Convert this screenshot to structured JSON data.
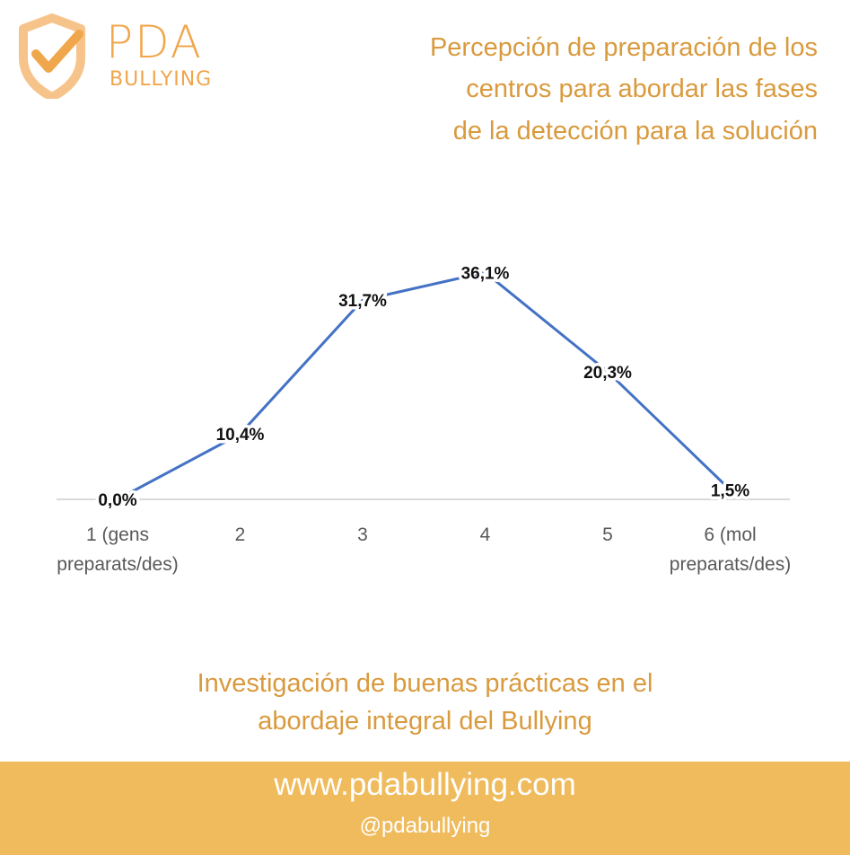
{
  "logo": {
    "line1": "PDA",
    "line2": "BULLYING",
    "icon": "shield-check-icon",
    "color": "#f0a64a"
  },
  "header": {
    "title_lines": [
      "Percepción de preparación de los",
      "centros para abordar las fases",
      "de la detección para la solución"
    ]
  },
  "chart_data": {
    "type": "line",
    "categories": [
      "1 (gens preparats/des)",
      "2",
      "3",
      "4",
      "5",
      "6 (mol preparats/des)"
    ],
    "category_label_lines": [
      [
        "1 (gens",
        "preparats/des)"
      ],
      [
        "2"
      ],
      [
        "3"
      ],
      [
        "4"
      ],
      [
        "5"
      ],
      [
        "6 (mol",
        "preparats/des)"
      ]
    ],
    "values": [
      0.0,
      10.4,
      31.7,
      36.1,
      20.3,
      1.5
    ],
    "data_labels": [
      "0,0%",
      "10,4%",
      "31,7%",
      "36,1%",
      "20,3%",
      "1,5%"
    ],
    "ylim": [
      0,
      40
    ],
    "grid": false,
    "line_color": "#4472c4",
    "axis_color": "#d9d9d9"
  },
  "subtitle": {
    "lines": [
      "Investigación de buenas prácticas en el",
      "abordaje integral del Bullying"
    ]
  },
  "footer": {
    "url": "www.pdabullying.com",
    "handle": "@pdabullying",
    "background": "#efbb5c"
  }
}
